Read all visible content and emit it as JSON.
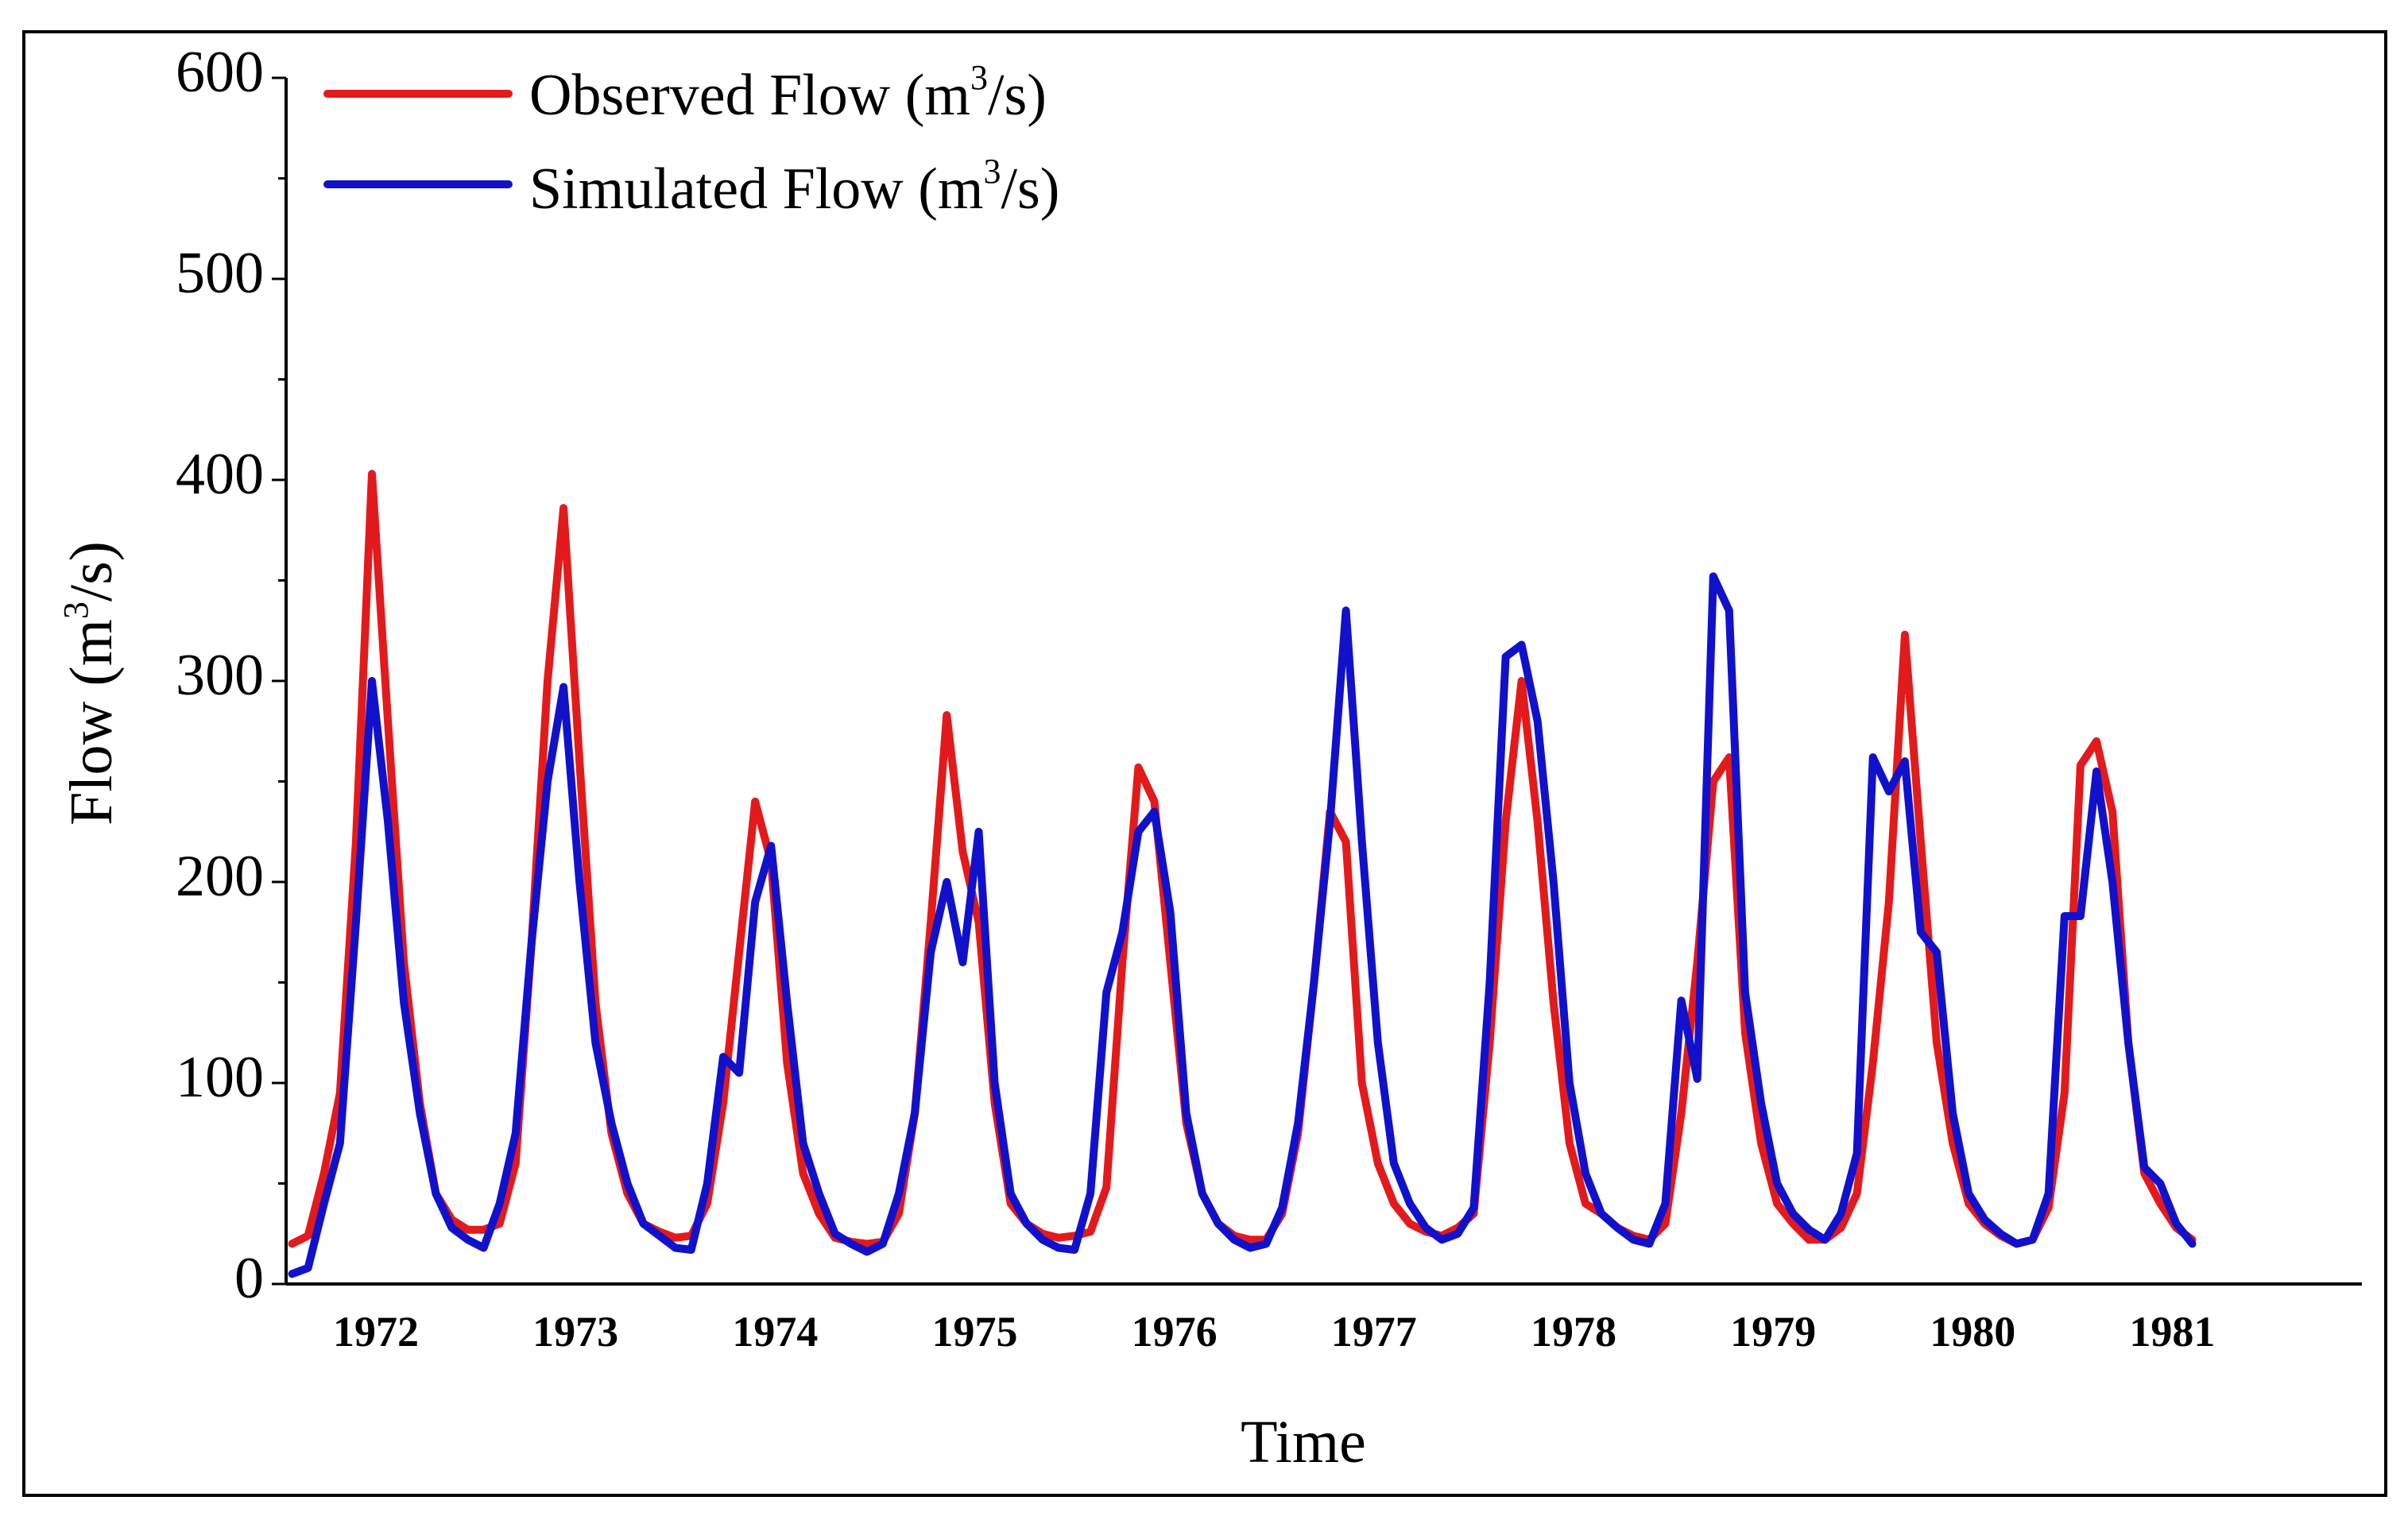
{
  "chart_data": {
    "type": "line",
    "xlabel": "Time",
    "ylabel": "Flow (m3/s)",
    "ylim": [
      0,
      600
    ],
    "yticks": [
      0,
      100,
      200,
      300,
      400,
      500,
      600
    ],
    "ytick_labels": [
      "0",
      "100",
      "200",
      "300",
      "400",
      "500",
      "600"
    ],
    "xlim": [
      1971.55,
      1981.95
    ],
    "xtick_labels": [
      "1972",
      "1973",
      "1974",
      "1975",
      "1976",
      "1977",
      "1978",
      "1979",
      "1980",
      "1981"
    ],
    "xtick_years": [
      1972,
      1973,
      1974,
      1975,
      1976,
      1977,
      1978,
      1979,
      1980,
      1981
    ],
    "legend": {
      "placement": "top-left"
    },
    "series": [
      {
        "name": "Observed Flow (m3/s)",
        "label_base": "Observed Flow (m",
        "label_sup": "3",
        "label_end": "/s)",
        "color": "#e31a1c",
        "points": [
          [
            1971.58,
            20
          ],
          [
            1971.66,
            24
          ],
          [
            1971.74,
            55
          ],
          [
            1971.82,
            95
          ],
          [
            1971.9,
            220
          ],
          [
            1971.98,
            403
          ],
          [
            1972.06,
            280
          ],
          [
            1972.14,
            160
          ],
          [
            1972.22,
            90
          ],
          [
            1972.3,
            45
          ],
          [
            1972.38,
            32
          ],
          [
            1972.46,
            27
          ],
          [
            1972.54,
            27
          ],
          [
            1972.62,
            30
          ],
          [
            1972.7,
            60
          ],
          [
            1972.78,
            170
          ],
          [
            1972.86,
            300
          ],
          [
            1972.94,
            386
          ],
          [
            1973.02,
            260
          ],
          [
            1973.1,
            140
          ],
          [
            1973.18,
            75
          ],
          [
            1973.26,
            45
          ],
          [
            1973.34,
            30
          ],
          [
            1973.42,
            26
          ],
          [
            1973.5,
            23
          ],
          [
            1973.58,
            24
          ],
          [
            1973.66,
            40
          ],
          [
            1973.74,
            90
          ],
          [
            1973.82,
            165
          ],
          [
            1973.9,
            240
          ],
          [
            1973.98,
            210
          ],
          [
            1974.06,
            110
          ],
          [
            1974.14,
            55
          ],
          [
            1974.22,
            35
          ],
          [
            1974.3,
            23
          ],
          [
            1974.38,
            21
          ],
          [
            1974.46,
            20
          ],
          [
            1974.54,
            21
          ],
          [
            1974.62,
            35
          ],
          [
            1974.7,
            85
          ],
          [
            1974.78,
            180
          ],
          [
            1974.86,
            283
          ],
          [
            1974.94,
            215
          ],
          [
            1975.02,
            180
          ],
          [
            1975.1,
            90
          ],
          [
            1975.18,
            40
          ],
          [
            1975.26,
            30
          ],
          [
            1975.34,
            25
          ],
          [
            1975.42,
            23
          ],
          [
            1975.5,
            24
          ],
          [
            1975.58,
            26
          ],
          [
            1975.66,
            48
          ],
          [
            1975.74,
            160
          ],
          [
            1975.82,
            257
          ],
          [
            1975.9,
            240
          ],
          [
            1975.98,
            160
          ],
          [
            1976.06,
            80
          ],
          [
            1976.14,
            45
          ],
          [
            1976.22,
            30
          ],
          [
            1976.3,
            24
          ],
          [
            1976.38,
            22
          ],
          [
            1976.46,
            22
          ],
          [
            1976.54,
            35
          ],
          [
            1976.62,
            75
          ],
          [
            1976.7,
            150
          ],
          [
            1976.78,
            235
          ],
          [
            1976.86,
            220
          ],
          [
            1976.94,
            100
          ],
          [
            1977.02,
            60
          ],
          [
            1977.1,
            40
          ],
          [
            1977.18,
            30
          ],
          [
            1977.26,
            26
          ],
          [
            1977.34,
            24
          ],
          [
            1977.42,
            28
          ],
          [
            1977.5,
            35
          ],
          [
            1977.58,
            120
          ],
          [
            1977.66,
            230
          ],
          [
            1977.74,
            300
          ],
          [
            1977.82,
            230
          ],
          [
            1977.9,
            140
          ],
          [
            1977.98,
            70
          ],
          [
            1978.06,
            40
          ],
          [
            1978.14,
            35
          ],
          [
            1978.22,
            28
          ],
          [
            1978.3,
            24
          ],
          [
            1978.38,
            22
          ],
          [
            1978.46,
            30
          ],
          [
            1978.54,
            85
          ],
          [
            1978.62,
            160
          ],
          [
            1978.7,
            250
          ],
          [
            1978.78,
            262
          ],
          [
            1978.86,
            125
          ],
          [
            1978.94,
            70
          ],
          [
            1979.02,
            40
          ],
          [
            1979.1,
            30
          ],
          [
            1979.18,
            22
          ],
          [
            1979.26,
            22
          ],
          [
            1979.34,
            28
          ],
          [
            1979.42,
            45
          ],
          [
            1979.5,
            110
          ],
          [
            1979.58,
            190
          ],
          [
            1979.66,
            323
          ],
          [
            1979.74,
            220
          ],
          [
            1979.82,
            120
          ],
          [
            1979.9,
            70
          ],
          [
            1979.98,
            40
          ],
          [
            1980.06,
            30
          ],
          [
            1980.14,
            24
          ],
          [
            1980.22,
            20
          ],
          [
            1980.3,
            22
          ],
          [
            1980.38,
            38
          ],
          [
            1980.46,
            95
          ],
          [
            1980.54,
            258
          ],
          [
            1980.62,
            270
          ],
          [
            1980.7,
            235
          ],
          [
            1980.78,
            120
          ],
          [
            1980.86,
            55
          ],
          [
            1980.94,
            40
          ],
          [
            1981.02,
            28
          ],
          [
            1981.1,
            22
          ]
        ]
      },
      {
        "name": "Simulated Flow (m3/s)",
        "label_base": "Simulated Flow (m",
        "label_sup": "3",
        "label_end": "/s)",
        "color": "#1111cc",
        "points": [
          [
            1971.58,
            5
          ],
          [
            1971.66,
            8
          ],
          [
            1971.74,
            40
          ],
          [
            1971.82,
            70
          ],
          [
            1971.9,
            180
          ],
          [
            1971.98,
            300
          ],
          [
            1972.06,
            230
          ],
          [
            1972.14,
            140
          ],
          [
            1972.22,
            85
          ],
          [
            1972.3,
            45
          ],
          [
            1972.38,
            28
          ],
          [
            1972.46,
            22
          ],
          [
            1972.54,
            18
          ],
          [
            1972.62,
            40
          ],
          [
            1972.7,
            75
          ],
          [
            1972.78,
            170
          ],
          [
            1972.86,
            250
          ],
          [
            1972.94,
            297
          ],
          [
            1973.02,
            200
          ],
          [
            1973.1,
            120
          ],
          [
            1973.18,
            80
          ],
          [
            1973.26,
            50
          ],
          [
            1973.34,
            30
          ],
          [
            1973.42,
            24
          ],
          [
            1973.5,
            18
          ],
          [
            1973.58,
            17
          ],
          [
            1973.66,
            50
          ],
          [
            1973.74,
            113
          ],
          [
            1973.82,
            105
          ],
          [
            1973.9,
            190
          ],
          [
            1973.98,
            218
          ],
          [
            1974.06,
            140
          ],
          [
            1974.14,
            70
          ],
          [
            1974.22,
            45
          ],
          [
            1974.3,
            25
          ],
          [
            1974.38,
            20
          ],
          [
            1974.46,
            16
          ],
          [
            1974.54,
            20
          ],
          [
            1974.62,
            45
          ],
          [
            1974.7,
            85
          ],
          [
            1974.78,
            165
          ],
          [
            1974.86,
            200
          ],
          [
            1974.94,
            160
          ],
          [
            1975.02,
            225
          ],
          [
            1975.1,
            100
          ],
          [
            1975.18,
            45
          ],
          [
            1975.26,
            30
          ],
          [
            1975.34,
            22
          ],
          [
            1975.42,
            18
          ],
          [
            1975.5,
            17
          ],
          [
            1975.58,
            45
          ],
          [
            1975.66,
            145
          ],
          [
            1975.74,
            175
          ],
          [
            1975.82,
            225
          ],
          [
            1975.9,
            235
          ],
          [
            1975.98,
            185
          ],
          [
            1976.06,
            85
          ],
          [
            1976.14,
            45
          ],
          [
            1976.22,
            30
          ],
          [
            1976.3,
            22
          ],
          [
            1976.38,
            18
          ],
          [
            1976.46,
            20
          ],
          [
            1976.54,
            38
          ],
          [
            1976.62,
            80
          ],
          [
            1976.7,
            150
          ],
          [
            1976.78,
            230
          ],
          [
            1976.86,
            335
          ],
          [
            1976.94,
            220
          ],
          [
            1977.02,
            120
          ],
          [
            1977.1,
            60
          ],
          [
            1977.18,
            40
          ],
          [
            1977.26,
            28
          ],
          [
            1977.34,
            22
          ],
          [
            1977.42,
            25
          ],
          [
            1977.5,
            38
          ],
          [
            1977.58,
            150
          ],
          [
            1977.66,
            312
          ],
          [
            1977.74,
            318
          ],
          [
            1977.82,
            280
          ],
          [
            1977.9,
            200
          ],
          [
            1977.98,
            100
          ],
          [
            1978.06,
            55
          ],
          [
            1978.14,
            35
          ],
          [
            1978.22,
            28
          ],
          [
            1978.3,
            22
          ],
          [
            1978.38,
            20
          ],
          [
            1978.46,
            40
          ],
          [
            1978.54,
            141
          ],
          [
            1978.62,
            102
          ],
          [
            1978.7,
            352
          ],
          [
            1978.78,
            335
          ],
          [
            1978.86,
            145
          ],
          [
            1978.94,
            90
          ],
          [
            1979.02,
            50
          ],
          [
            1979.1,
            35
          ],
          [
            1979.18,
            27
          ],
          [
            1979.26,
            22
          ],
          [
            1979.34,
            35
          ],
          [
            1979.42,
            65
          ],
          [
            1979.5,
            262
          ],
          [
            1979.58,
            245
          ],
          [
            1979.66,
            260
          ],
          [
            1979.74,
            175
          ],
          [
            1979.82,
            165
          ],
          [
            1979.9,
            85
          ],
          [
            1979.98,
            45
          ],
          [
            1980.06,
            32
          ],
          [
            1980.14,
            25
          ],
          [
            1980.22,
            20
          ],
          [
            1980.3,
            22
          ],
          [
            1980.38,
            45
          ],
          [
            1980.46,
            183
          ],
          [
            1980.54,
            183
          ],
          [
            1980.62,
            255
          ],
          [
            1980.7,
            200
          ],
          [
            1980.78,
            120
          ],
          [
            1980.86,
            58
          ],
          [
            1980.94,
            50
          ],
          [
            1981.02,
            30
          ],
          [
            1981.1,
            20
          ]
        ]
      }
    ]
  }
}
